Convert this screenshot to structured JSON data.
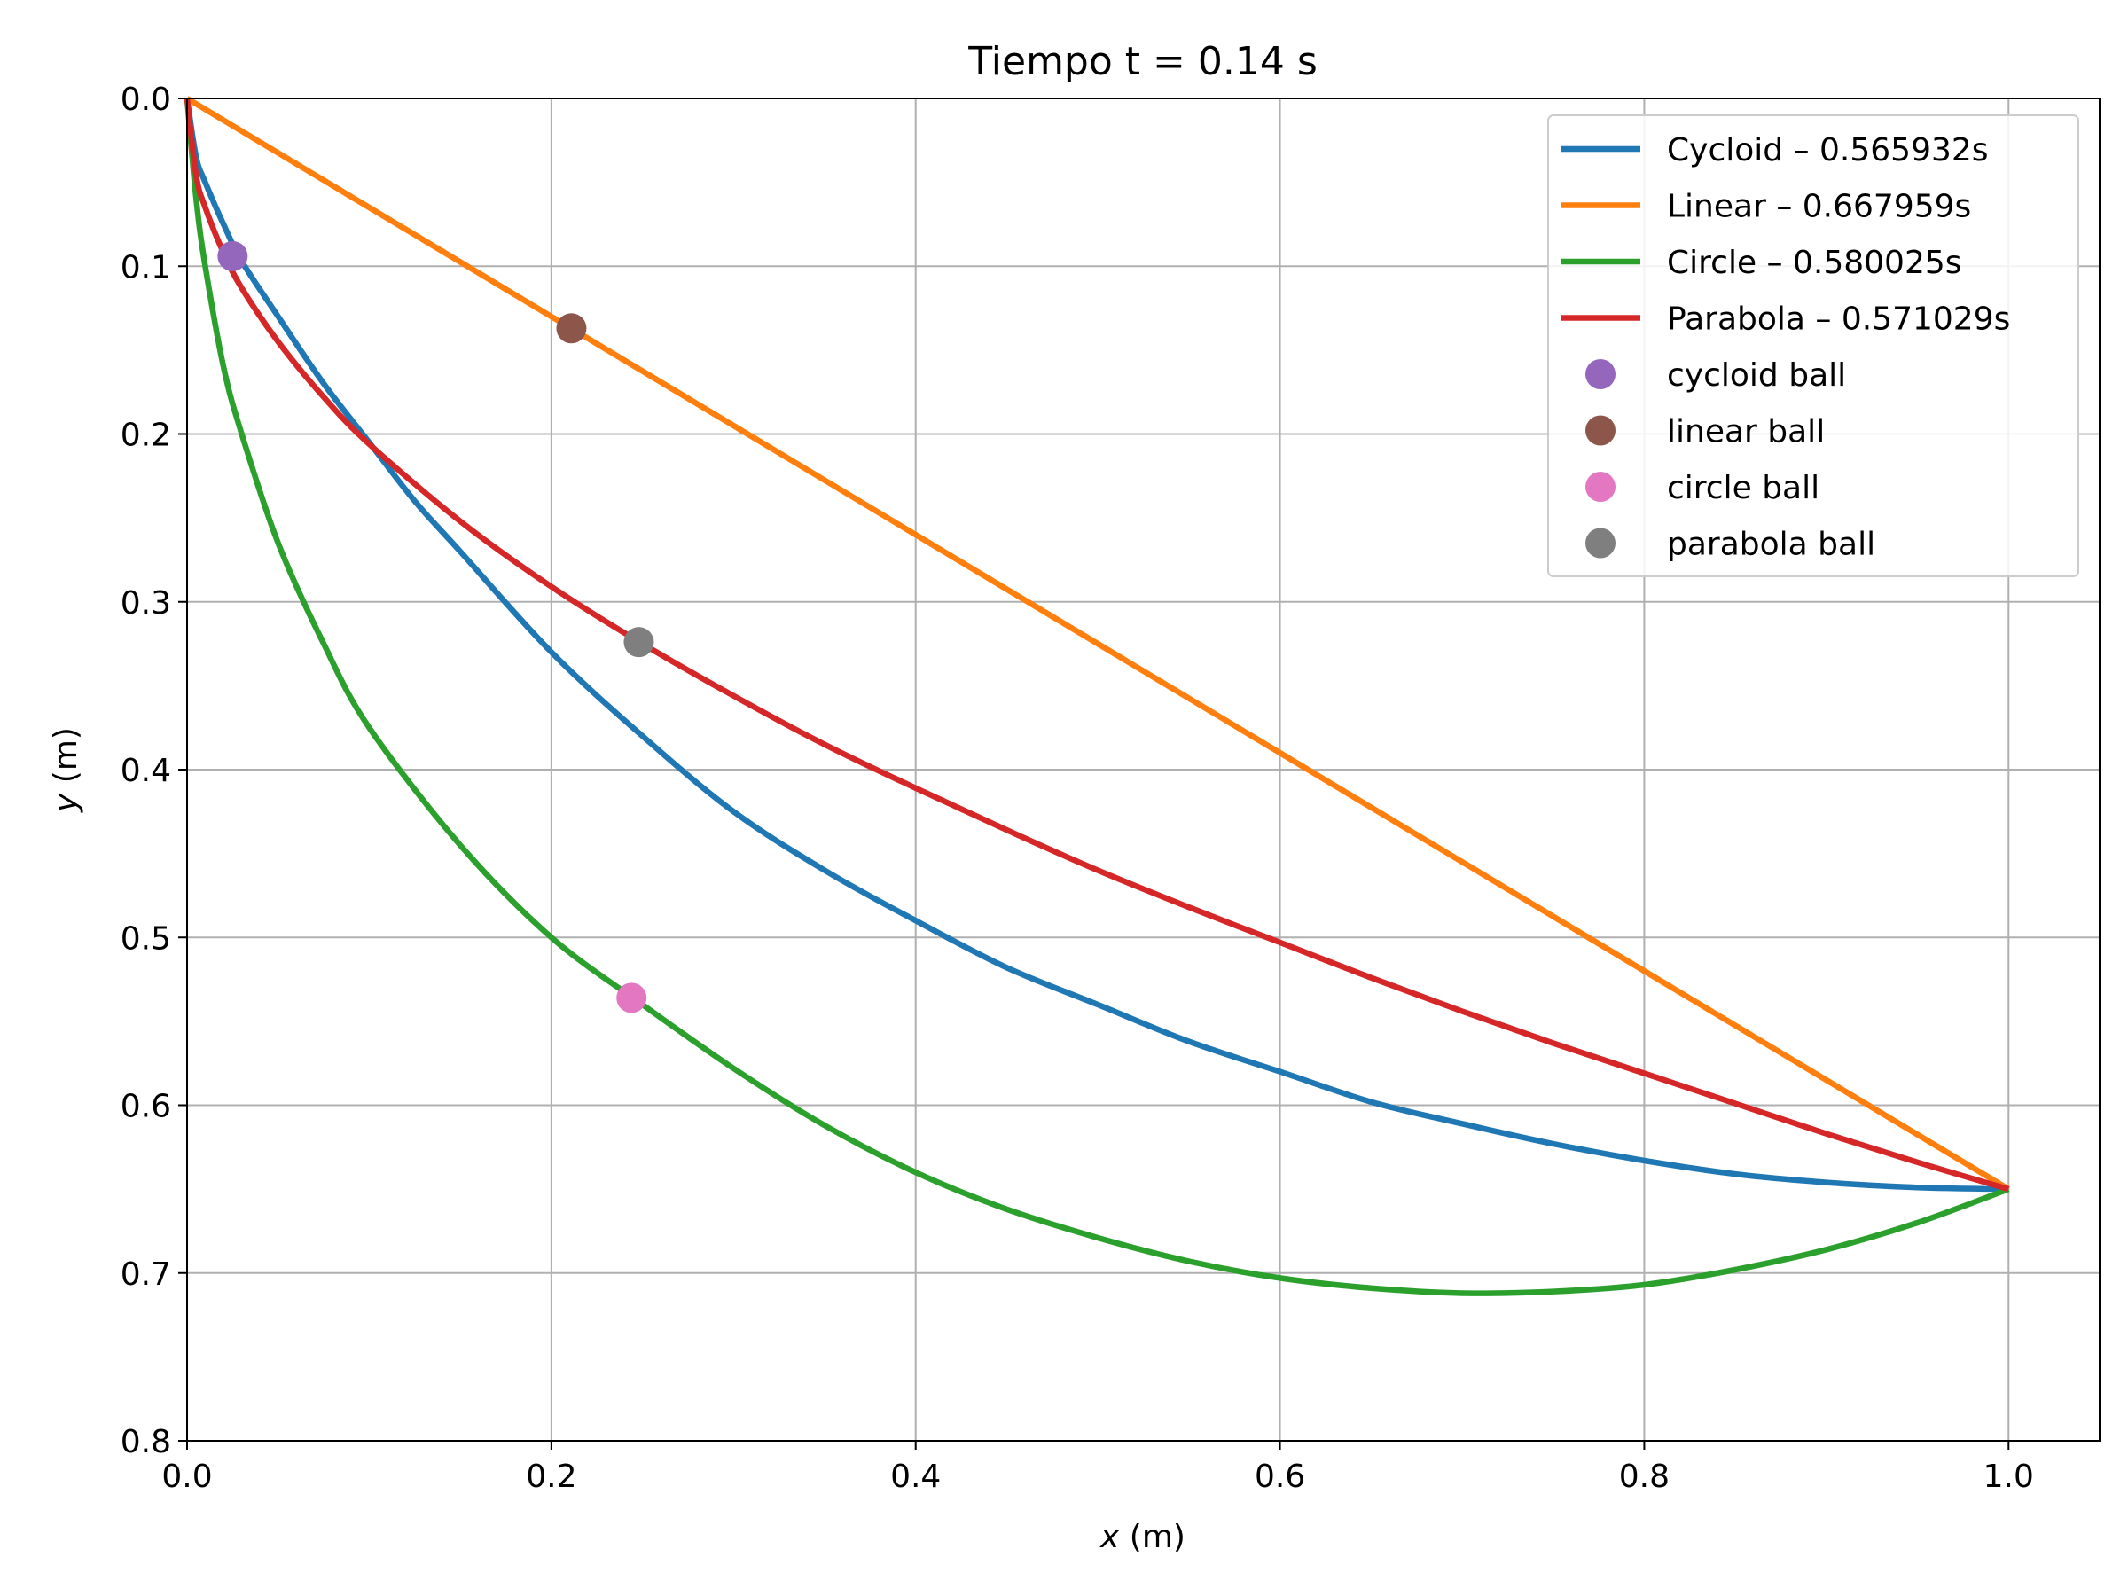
{
  "chart_data": {
    "type": "line",
    "title": "Tiempo t = 0.14 s",
    "xlabel_var": "x",
    "xlabel_unit": " (m)",
    "ylabel_var": "y",
    "ylabel_unit": " (m)",
    "xlim": [
      0,
      1.05
    ],
    "ylim": [
      0.8,
      0.0
    ],
    "y_inverted": true,
    "grid": true,
    "legend_position": "top-right",
    "x_ticks": [
      "0.0",
      "0.2",
      "0.4",
      "0.6",
      "0.8",
      "1.0"
    ],
    "y_ticks": [
      "0.0",
      "0.1",
      "0.2",
      "0.3",
      "0.4",
      "0.5",
      "0.6",
      "0.7",
      "0.8"
    ],
    "series": [
      {
        "name": "Cycloid – 0.565932s",
        "color": "#1f77b4",
        "x": [
          0,
          0.005,
          0.01,
          0.02,
          0.03,
          0.05,
          0.075,
          0.1,
          0.125,
          0.15,
          0.2,
          0.25,
          0.3,
          0.35,
          0.4,
          0.45,
          0.5,
          0.55,
          0.6,
          0.65,
          0.7,
          0.75,
          0.8,
          0.85,
          0.9,
          0.95,
          1.0
        ],
        "y": [
          0,
          0.035,
          0.05,
          0.075,
          0.097,
          0.13,
          0.17,
          0.205,
          0.24,
          0.27,
          0.33,
          0.38,
          0.425,
          0.46,
          0.49,
          0.518,
          0.54,
          0.562,
          0.58,
          0.598,
          0.611,
          0.623,
          0.633,
          0.641,
          0.646,
          0.649,
          0.65
        ]
      },
      {
        "name": "Linear – 0.667959s",
        "color": "#ff7f0e",
        "x": [
          0,
          1.0
        ],
        "y": [
          0,
          0.65
        ]
      },
      {
        "name": "Circle – 0.580025s",
        "color": "#2ca02c",
        "x": [
          0,
          0.005,
          0.01,
          0.02,
          0.03,
          0.05,
          0.075,
          0.1,
          0.15,
          0.2,
          0.25,
          0.3,
          0.35,
          0.4,
          0.45,
          0.5,
          0.55,
          0.6,
          0.65,
          0.7,
          0.75,
          0.8,
          0.85,
          0.9,
          0.95,
          1.0
        ],
        "y": [
          0,
          0.06,
          0.1,
          0.16,
          0.2,
          0.265,
          0.325,
          0.375,
          0.445,
          0.5,
          0.54,
          0.578,
          0.612,
          0.64,
          0.662,
          0.679,
          0.693,
          0.703,
          0.709,
          0.712,
          0.711,
          0.707,
          0.698,
          0.686,
          0.67,
          0.65
        ]
      },
      {
        "name": "Parabola – 0.571029s",
        "color": "#d62728",
        "x": [
          0,
          0.005,
          0.01,
          0.02,
          0.03,
          0.05,
          0.075,
          0.1,
          0.15,
          0.2,
          0.25,
          0.3,
          0.35,
          0.4,
          0.45,
          0.5,
          0.55,
          0.6,
          0.65,
          0.7,
          0.75,
          0.8,
          0.85,
          0.9,
          0.95,
          1.0
        ],
        "y": [
          0,
          0.046,
          0.065,
          0.092,
          0.113,
          0.145,
          0.178,
          0.206,
          0.252,
          0.291,
          0.325,
          0.356,
          0.385,
          0.411,
          0.436,
          0.46,
          0.482,
          0.503,
          0.524,
          0.544,
          0.563,
          0.581,
          0.599,
          0.617,
          0.634,
          0.65
        ]
      }
    ],
    "balls": [
      {
        "name": "cycloid ball",
        "color": "#9467bd",
        "x": 0.025,
        "y": 0.094
      },
      {
        "name": "linear ball",
        "color": "#8c564b",
        "x": 0.211,
        "y": 0.137
      },
      {
        "name": "circle ball",
        "color": "#e377c2",
        "x": 0.244,
        "y": 0.536
      },
      {
        "name": "parabola ball",
        "color": "#7f7f7f",
        "x": 0.248,
        "y": 0.324
      }
    ]
  }
}
